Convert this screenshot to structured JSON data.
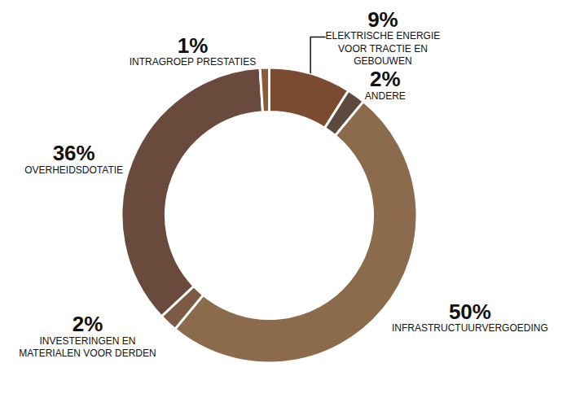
{
  "chart_data": {
    "type": "pie",
    "categories": [
      "ELEKTRISCHE ENERGIE VOOR TRACTIE EN GEBOUWEN",
      "ANDERE",
      "INFRASTRUCTUURVERGOEDING",
      "INVESTERINGEN EN MATERIALEN VOOR DERDEN",
      "OVERHEIDSDOTATIE",
      "INTRAGROEP PRESTATIES"
    ],
    "values": [
      9,
      2,
      50,
      2,
      36,
      1
    ],
    "value_labels": [
      "9%",
      "2%",
      "50%",
      "2%",
      "36%",
      "1%"
    ],
    "colors": [
      "#7a4b30",
      "#5c4a3f",
      "#8c6a4c",
      "#7d5a43",
      "#6a4a3c",
      "#8a5a3c"
    ],
    "data_labels": true
  }
}
